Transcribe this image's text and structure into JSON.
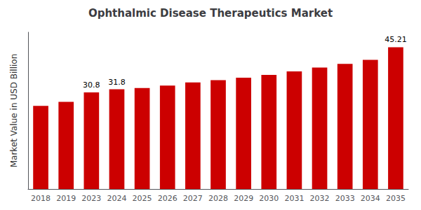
{
  "chart_data": {
    "type": "bar",
    "title": "Ophthalmic Disease Therapeutics Market",
    "ylabel": "Market Value in USD Billion",
    "categories": [
      "2018",
      "2019",
      "2023",
      "2024",
      "2025",
      "2026",
      "2027",
      "2028",
      "2029",
      "2030",
      "2031",
      "2032",
      "2033",
      "2034",
      "2035"
    ],
    "values": [
      26.5,
      27.8,
      30.8,
      31.8,
      32.2,
      33.0,
      34.0,
      34.7,
      35.5,
      36.4,
      37.5,
      38.7,
      39.9,
      41.2,
      45.21
    ],
    "value_labels": [
      null,
      null,
      "30.8",
      "31.8",
      null,
      null,
      null,
      null,
      null,
      null,
      null,
      null,
      null,
      null,
      "45.21"
    ],
    "color": "#CC0000",
    "ylim": [
      0,
      50
    ],
    "yticks": [],
    "grid": false,
    "tick_labels": "x"
  }
}
